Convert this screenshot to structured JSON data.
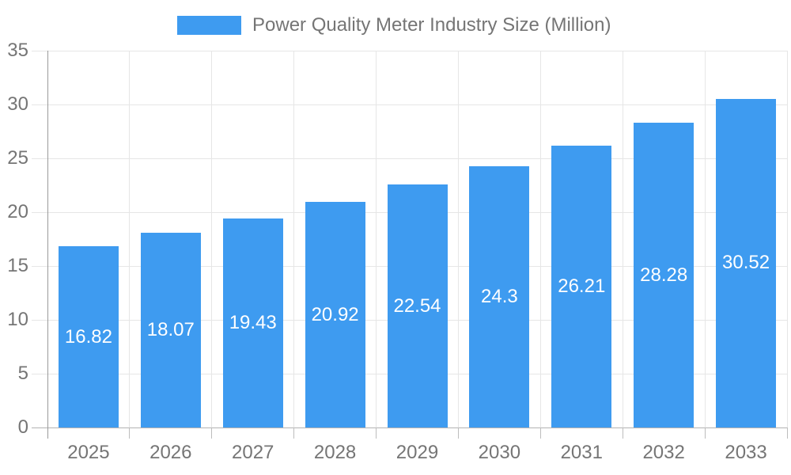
{
  "chart_data": {
    "type": "bar",
    "title": "Power Quality Meter Industry Size (Million)",
    "categories": [
      "2025",
      "2026",
      "2027",
      "2028",
      "2029",
      "2030",
      "2031",
      "2032",
      "2033"
    ],
    "values": [
      16.82,
      18.07,
      19.43,
      20.92,
      22.54,
      24.3,
      26.21,
      28.28,
      30.52
    ],
    "value_labels": [
      "16.82",
      "18.07",
      "19.43",
      "20.92",
      "22.54",
      "24.3",
      "26.21",
      "28.28",
      "30.52"
    ],
    "xlabel": "",
    "ylabel": "",
    "ylim": [
      0,
      35
    ],
    "ytick_step": 5,
    "ytick_labels": [
      "0",
      "5",
      "10",
      "15",
      "20",
      "25",
      "30",
      "35"
    ],
    "grid": "on",
    "legend_position": "top",
    "colors": {
      "bar": "#3E9BF0",
      "bar_value_text": "#FFFFFF",
      "axis_text": "#757575",
      "legend_text": "#757575",
      "gridline": "#E6E6E6",
      "zero_line": "#B3B3B3",
      "tick": "#BDBDBD",
      "axis_line": "#9A9A9A",
      "background": "#FFFFFF"
    }
  }
}
